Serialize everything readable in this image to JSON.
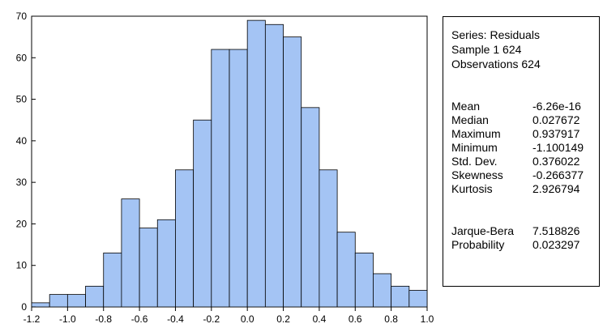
{
  "chart_data": {
    "type": "bar",
    "bin_edges": [
      -1.2,
      -1.1,
      -1.0,
      -0.9,
      -0.8,
      -0.7,
      -0.6,
      -0.5,
      -0.4,
      -0.3,
      -0.2,
      -0.1,
      0.0,
      0.1,
      0.2,
      0.3,
      0.4,
      0.5,
      0.6,
      0.7,
      0.8,
      0.9,
      1.0
    ],
    "values": [
      1,
      3,
      3,
      5,
      13,
      26,
      19,
      21,
      33,
      45,
      62,
      62,
      69,
      68,
      65,
      48,
      33,
      18,
      13,
      8,
      5,
      4
    ],
    "xlim": [
      -1.2,
      1.0
    ],
    "ylim": [
      0,
      70
    ],
    "x_ticks": [
      "-1.2",
      "-1.0",
      "-0.8",
      "-0.6",
      "-0.4",
      "-0.2",
      "0.0",
      "0.2",
      "0.4",
      "0.6",
      "0.8",
      "1.0"
    ],
    "y_ticks": [
      "0",
      "10",
      "20",
      "30",
      "40",
      "50",
      "60",
      "70"
    ],
    "bar_color": "#a4c4f4",
    "xlabel": "",
    "ylabel": "",
    "title": "",
    "grid": false
  },
  "stats": {
    "series_line": "Series: Residuals",
    "sample_line": "Sample 1 624",
    "observations_line": "Observations 624",
    "rows": [
      {
        "label": "Mean",
        "value": "-6.26e-16"
      },
      {
        "label": "Median",
        "value": "0.027672"
      },
      {
        "label": "Maximum",
        "value": "0.937917"
      },
      {
        "label": "Minimum",
        "value": "-1.100149"
      },
      {
        "label": "Std. Dev.",
        "value": "0.376022"
      },
      {
        "label": "Skewness",
        "value": "-0.266377"
      },
      {
        "label": "Kurtosis",
        "value": "2.926794"
      }
    ],
    "test_rows": [
      {
        "label": "Jarque-Bera",
        "value": "7.518826"
      },
      {
        "label": "Probability",
        "value": "0.023297"
      }
    ]
  }
}
